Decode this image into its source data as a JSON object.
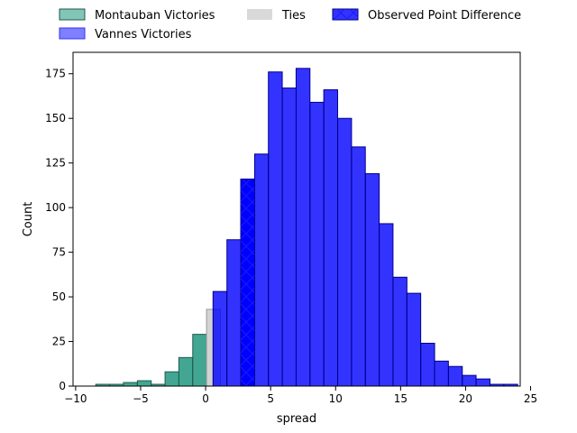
{
  "chart_data": {
    "type": "bar",
    "title": "",
    "xlabel": "spread",
    "ylabel": "Count",
    "xlim": [
      -10.2,
      24.2
    ],
    "ylim": [
      0,
      187
    ],
    "xticks": [
      -10,
      -5,
      0,
      5,
      10,
      15,
      20,
      25
    ],
    "yticks": [
      0,
      25,
      50,
      75,
      100,
      125,
      150,
      175
    ],
    "bin_width": 1.065,
    "legend": {
      "placement": "top-outside",
      "entries": [
        {
          "label": "Montauban Victories",
          "color": "#2e9c86"
        },
        {
          "label": "Ties",
          "color": "#d9d9d9"
        },
        {
          "label": "Observed Point Difference",
          "color": "#0000ff",
          "hatch": "x"
        },
        {
          "label": "Vannes Victories",
          "color": "#0000ff"
        }
      ]
    },
    "series": [
      {
        "name": "Montauban Victories",
        "color": "#2e9c86",
        "bins": [
          {
            "x": -8.45,
            "count": 1
          },
          {
            "x": -7.38,
            "count": 1
          },
          {
            "x": -6.32,
            "count": 2
          },
          {
            "x": -5.25,
            "count": 3
          },
          {
            "x": -4.19,
            "count": 1
          },
          {
            "x": -3.12,
            "count": 8
          },
          {
            "x": -2.06,
            "count": 16
          },
          {
            "x": -0.99,
            "count": 29
          }
        ]
      },
      {
        "name": "Ties",
        "color": "#d3d3d3",
        "bins": [
          {
            "x": 0.07,
            "count": 43
          }
        ]
      },
      {
        "name": "Vannes Victories",
        "color": "#0000ff",
        "bins": [
          {
            "x": 0.57,
            "count": 53
          },
          {
            "x": 1.64,
            "count": 82
          },
          {
            "x": 2.7,
            "count": 116
          },
          {
            "x": 3.77,
            "count": 130
          },
          {
            "x": 4.83,
            "count": 176
          },
          {
            "x": 5.9,
            "count": 167
          },
          {
            "x": 6.96,
            "count": 178
          },
          {
            "x": 8.03,
            "count": 159
          },
          {
            "x": 9.09,
            "count": 166
          },
          {
            "x": 10.16,
            "count": 150
          },
          {
            "x": 11.22,
            "count": 134
          },
          {
            "x": 12.29,
            "count": 119
          },
          {
            "x": 13.35,
            "count": 91
          },
          {
            "x": 14.42,
            "count": 61
          },
          {
            "x": 15.48,
            "count": 52
          },
          {
            "x": 16.55,
            "count": 24
          },
          {
            "x": 17.61,
            "count": 14
          },
          {
            "x": 18.68,
            "count": 11
          },
          {
            "x": 19.74,
            "count": 6
          },
          {
            "x": 20.81,
            "count": 4
          },
          {
            "x": 21.87,
            "count": 1
          },
          {
            "x": 22.94,
            "count": 1
          }
        ]
      },
      {
        "name": "Observed Point Difference",
        "color": "#0000ff",
        "hatch": "x",
        "bins": [
          {
            "x": 2.7,
            "count": 116
          }
        ]
      }
    ]
  }
}
